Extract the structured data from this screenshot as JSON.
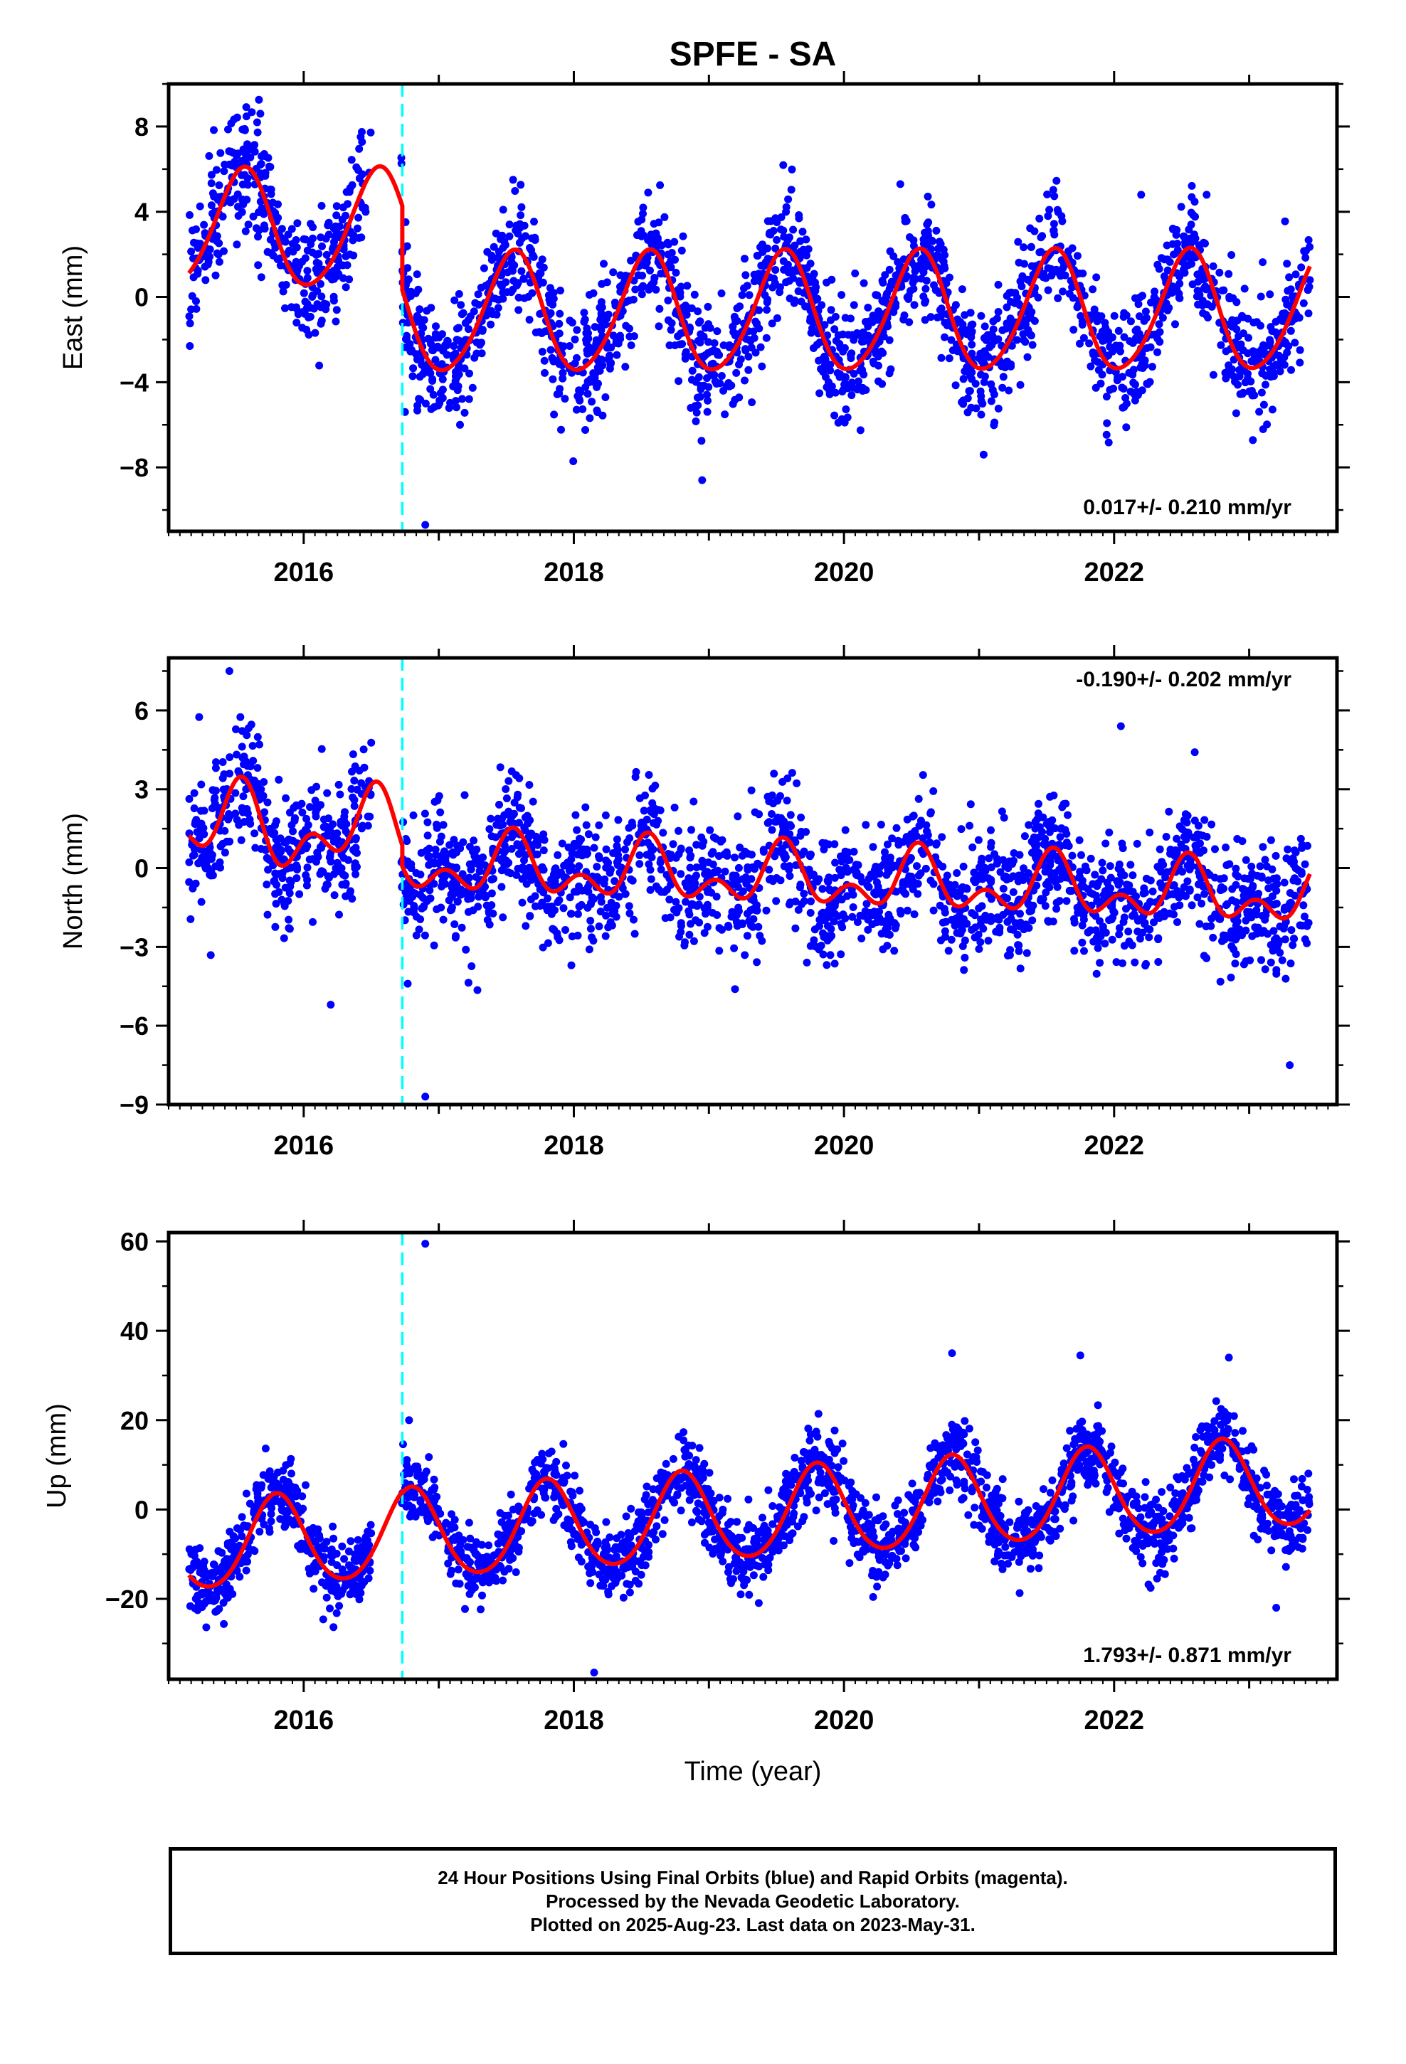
{
  "title": "SPFE - SA",
  "footer": {
    "line1": "24 Hour Positions Using Final Orbits (blue) and Rapid Orbits (magenta).",
    "line2": "Processed by the Nevada Geodetic Laboratory.",
    "line3": "Plotted on 2025-Aug-23. Last data on 2023-May-31."
  },
  "colors": {
    "points": "#0000ff",
    "model": "#ff0000",
    "event_line": "#00ffff",
    "frame": "#000000"
  },
  "chart_data": [
    {
      "type": "scatter",
      "ylabel": "East (mm)",
      "xlim": [
        2015.0,
        2023.65
      ],
      "ylim": [
        -11,
        10
      ],
      "yticks": [
        -8,
        -4,
        0,
        4,
        8
      ],
      "ytick_labels": [
        "−8",
        "−4",
        "0",
        "4",
        "8"
      ],
      "xticks": [
        2016,
        2018,
        2020,
        2022
      ],
      "xtick_labels": [
        "2016",
        "2018",
        "2020",
        "2022"
      ],
      "event_line_x": 2016.73,
      "rate_label": "0.017+/- 0.210 mm/yr",
      "rate_position": "bottom-right",
      "model": {
        "segments": [
          {
            "x0": 2015.15,
            "x1": 2016.73,
            "offset": 3.1,
            "trend": 0.017,
            "amp": 2.75,
            "phase": 2015.55,
            "amp2": 0.3,
            "phase2": 2015.6
          },
          {
            "x0": 2016.73,
            "x1": 2023.45,
            "offset": -0.85,
            "trend": 0.017,
            "amp": 2.8,
            "phase": 2016.55,
            "amp2": 0.3,
            "phase2": 2016.6
          }
        ]
      },
      "scatter": {
        "count": 2400,
        "noise": 1.35,
        "seed": 11,
        "gap": [
          2016.5,
          2016.72
        ]
      },
      "outliers": [
        {
          "x": 2016.9,
          "y": -10.7
        },
        {
          "x": 2016.75,
          "y": -5.4
        },
        {
          "x": 2018.95,
          "y": -8.6
        },
        {
          "x": 2017.55,
          "y": 5.5
        },
        {
          "x": 2018.55,
          "y": 4.9
        },
        {
          "x": 2022.2,
          "y": 4.8
        }
      ]
    },
    {
      "type": "scatter",
      "ylabel": "North (mm)",
      "xlim": [
        2015.0,
        2023.65
      ],
      "ylim": [
        -9,
        8
      ],
      "yticks": [
        -9,
        -6,
        -3,
        0,
        3,
        6
      ],
      "ytick_labels": [
        "−9",
        "−6",
        "−3",
        "0",
        "3",
        "6"
      ],
      "xticks": [
        2016,
        2018,
        2020,
        2022
      ],
      "xtick_labels": [
        "2016",
        "2018",
        "2020",
        "2022"
      ],
      "event_line_x": 2016.73,
      "rate_label": "-0.190+/- 0.202 mm/yr",
      "rate_position": "top-right",
      "model": {
        "segments": [
          {
            "x0": 2015.15,
            "x1": 2016.73,
            "offset": 1.6,
            "trend": -0.19,
            "amp": 1.1,
            "phase": 2015.5,
            "amp2": 0.9,
            "phase2": 2015.55
          },
          {
            "x0": 2016.73,
            "x1": 2023.45,
            "offset": 0.15,
            "trend": -0.19,
            "amp": 0.85,
            "phase": 2016.55,
            "amp2": 0.7,
            "phase2": 2016.55
          }
        ]
      },
      "scatter": {
        "count": 2400,
        "noise": 1.2,
        "seed": 29,
        "gap": [
          2016.5,
          2016.72
        ]
      },
      "outliers": [
        {
          "x": 2016.9,
          "y": -8.7
        },
        {
          "x": 2016.77,
          "y": -4.4
        },
        {
          "x": 2022.05,
          "y": 5.4
        },
        {
          "x": 2015.45,
          "y": 7.5
        },
        {
          "x": 2023.3,
          "y": -7.5
        },
        {
          "x": 2016.2,
          "y": -5.2
        }
      ]
    },
    {
      "type": "scatter",
      "xlabel": "Time (year)",
      "ylabel": "Up (mm)",
      "xlim": [
        2015.0,
        2023.65
      ],
      "ylim": [
        -38,
        62
      ],
      "yticks": [
        -20,
        0,
        20,
        40,
        60
      ],
      "ytick_labels": [
        "−20",
        "0",
        "20",
        "40",
        "60"
      ],
      "xticks": [
        2016,
        2018,
        2020,
        2022
      ],
      "xtick_labels": [
        "2016",
        "2018",
        "2020",
        "2022"
      ],
      "event_line_x": 2016.73,
      "rate_label": "1.793+/- 0.871 mm/yr",
      "rate_position": "bottom-right",
      "model": {
        "segments": [
          {
            "x0": 2015.15,
            "x1": 2016.73,
            "offset": -8.5,
            "trend": 1.793,
            "amp": 10.0,
            "phase": 2015.8,
            "amp2": 1.0,
            "phase2": 2015.8
          },
          {
            "x0": 2016.73,
            "x1": 2023.45,
            "offset": -6.0,
            "trend": 1.793,
            "amp": 10.0,
            "phase": 2016.8,
            "amp2": 1.0,
            "phase2": 2016.8
          }
        ]
      },
      "scatter": {
        "count": 2400,
        "noise": 4.2,
        "seed": 47,
        "gap": [
          2016.5,
          2016.72
        ]
      },
      "outliers": [
        {
          "x": 2016.9,
          "y": 59.5
        },
        {
          "x": 2016.78,
          "y": 20.0
        },
        {
          "x": 2018.15,
          "y": -36.5
        },
        {
          "x": 2020.8,
          "y": 35.0
        },
        {
          "x": 2021.75,
          "y": 34.5
        },
        {
          "x": 2022.85,
          "y": 34.0
        },
        {
          "x": 2023.2,
          "y": -22.0
        }
      ]
    }
  ]
}
